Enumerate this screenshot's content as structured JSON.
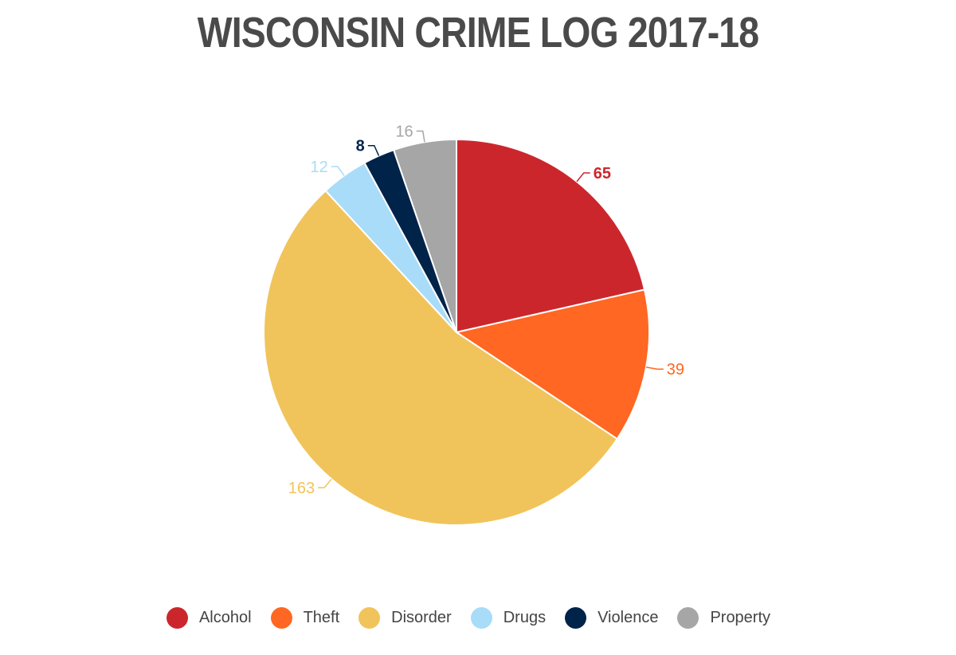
{
  "chart_data": {
    "type": "pie",
    "title": "WISCONSIN CRIME LOG 2017-18",
    "categories": [
      "Alcohol",
      "Theft",
      "Disorder",
      "Drugs",
      "Violence",
      "Property"
    ],
    "values": [
      65,
      39,
      163,
      12,
      8,
      16
    ],
    "data_labels": [
      "65",
      "39",
      "163",
      "12",
      "8",
      "16"
    ],
    "colors": [
      "#cc262d",
      "#ff6722",
      "#f0c45b",
      "#a8dcf8",
      "#00234a",
      "#a6a6a6"
    ],
    "start_angle": "12 o'clock",
    "direction": "clockwise",
    "legend_placement": "bottom-center"
  }
}
